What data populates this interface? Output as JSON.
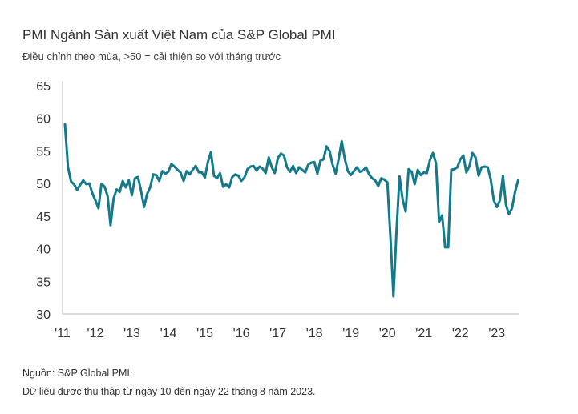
{
  "header": {
    "title": "PMI Ngành Sản xuất Việt Nam của S&P Global PMI",
    "subtitle": "Điều chỉnh theo mùa, >50 = cải thiện so với tháng trước"
  },
  "footer": {
    "source": "Nguồn: S&P Global PMI.",
    "note": "Dữ liệu được thu thập từ ngày 10 đến ngày 22 tháng 8 năm 2023."
  },
  "colors": {
    "line": "#137a8c",
    "axis": "#b5b5b5",
    "text": "#333333"
  },
  "chart_data": {
    "type": "line",
    "title": "PMI Ngành Sản xuất Việt Nam của S&P Global PMI",
    "ylim": [
      30,
      65
    ],
    "yticks": [
      30,
      35,
      40,
      45,
      50,
      55,
      60,
      65
    ],
    "xlim": [
      2011.1,
      2023.62
    ],
    "xticks": [
      {
        "label": "'11",
        "x": 2011.0
      },
      {
        "label": "'12",
        "x": 2012.0
      },
      {
        "label": "'13",
        "x": 2013.0
      },
      {
        "label": "'14",
        "x": 2014.0
      },
      {
        "label": "'15",
        "x": 2015.0
      },
      {
        "label": "'16",
        "x": 2016.0
      },
      {
        "label": "'17",
        "x": 2017.0
      },
      {
        "label": "'18",
        "x": 2018.0
      },
      {
        "label": "'19",
        "x": 2019.0
      },
      {
        "label": "'20",
        "x": 2020.0
      },
      {
        "label": "'21",
        "x": 2021.0
      },
      {
        "label": "'22",
        "x": 2022.0
      },
      {
        "label": "'23",
        "x": 2023.0
      }
    ],
    "grid": false,
    "series": [
      {
        "name": "PMI",
        "start_year": 2011,
        "start_month": 3,
        "values": [
          59.1,
          52.5,
          50.3,
          49.9,
          49.0,
          49.8,
          50.5,
          49.9,
          50.0,
          48.5,
          47.4,
          46.2,
          50.0,
          49.5,
          48.1,
          43.6,
          47.7,
          49.1,
          48.7,
          50.4,
          49.4,
          50.5,
          48.2,
          50.8,
          51.0,
          48.9,
          46.4,
          48.4,
          49.4,
          51.4,
          51.3,
          50.4,
          51.9,
          51.5,
          51.8,
          53.0,
          52.6,
          52.1,
          51.7,
          50.4,
          51.9,
          51.4,
          52.1,
          52.7,
          51.7,
          51.7,
          50.9,
          53.3,
          54.8,
          51.2,
          50.8,
          51.6,
          49.5,
          49.9,
          49.4,
          51.0,
          51.4,
          51.2,
          50.4,
          50.9,
          52.2,
          52.6,
          52.7,
          52.0,
          52.6,
          52.3,
          51.6,
          54.0,
          52.5,
          51.6,
          53.9,
          54.6,
          54.3,
          52.5,
          51.8,
          52.7,
          51.6,
          52.5,
          52.1,
          51.7,
          52.9,
          53.2,
          53.3,
          51.5,
          53.5,
          53.7,
          55.7,
          55.0,
          52.9,
          51.5,
          53.8,
          56.5,
          53.8,
          51.9,
          51.3,
          51.9,
          52.5,
          51.8,
          52.0,
          52.5,
          51.4,
          50.8,
          50.5,
          49.6,
          50.8,
          50.6,
          50.2,
          41.9,
          32.7,
          42.7,
          51.1,
          47.6,
          45.7,
          52.2,
          51.8,
          49.9,
          52.1,
          51.3,
          51.7,
          51.6,
          53.6,
          54.7,
          53.1,
          44.1,
          45.1,
          40.2,
          40.2,
          52.1,
          52.2,
          52.5,
          53.7,
          54.3,
          51.7,
          52.7,
          54.7,
          54.0,
          51.2,
          52.5,
          52.6,
          52.5,
          50.6,
          47.4,
          46.4,
          47.4,
          51.2,
          46.7,
          45.3,
          46.2,
          48.7,
          50.5
        ]
      }
    ]
  }
}
